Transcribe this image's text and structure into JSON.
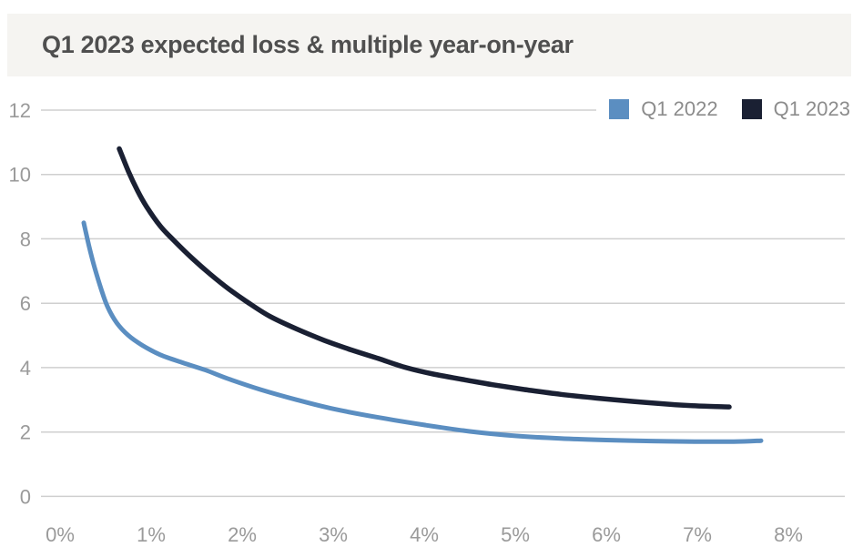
{
  "header": {
    "title": "Q1 2023 expected loss & multiple year-on-year"
  },
  "legend": {
    "position": "top-right",
    "items": [
      {
        "label": "Q1 2022",
        "color": "#5b8ec1"
      },
      {
        "label": "Q1 2023",
        "color": "#1a2033"
      }
    ]
  },
  "colors": {
    "banner_background": "#f5f4f1",
    "title_text": "#4f4f4f",
    "gridline": "#cfcfcf",
    "tick_text": "#9a9a9a",
    "legend_text": "#8c8c8c"
  },
  "chart_data": {
    "type": "line",
    "title": "Q1 2023 expected loss & multiple year-on-year",
    "xlabel": "",
    "ylabel": "",
    "xlim": [
      0,
      8
    ],
    "ylim": [
      0,
      12
    ],
    "x_tick_values": [
      0,
      1,
      2,
      3,
      4,
      5,
      6,
      7,
      8
    ],
    "x_tick_labels": [
      "0%",
      "1%",
      "2%",
      "3%",
      "4%",
      "5%",
      "6%",
      "7%",
      "8%"
    ],
    "y_ticks": [
      0,
      2,
      4,
      6,
      8,
      10,
      12
    ],
    "grid": "horizontal",
    "legend_position": "top-right",
    "x_unit": "percent_expected_loss",
    "y_unit": "multiple",
    "series": [
      {
        "name": "Q1 2022",
        "color": "#5b8ec1",
        "points": [
          [
            0.26,
            8.5
          ],
          [
            0.32,
            7.75
          ],
          [
            0.38,
            7.1
          ],
          [
            0.45,
            6.45
          ],
          [
            0.52,
            5.9
          ],
          [
            0.62,
            5.4
          ],
          [
            0.75,
            5.0
          ],
          [
            0.9,
            4.7
          ],
          [
            1.1,
            4.4
          ],
          [
            1.35,
            4.15
          ],
          [
            1.6,
            3.92
          ],
          [
            1.85,
            3.65
          ],
          [
            2.2,
            3.32
          ],
          [
            2.6,
            3.0
          ],
          [
            3.0,
            2.72
          ],
          [
            3.5,
            2.45
          ],
          [
            4.0,
            2.22
          ],
          [
            4.5,
            2.02
          ],
          [
            5.0,
            1.88
          ],
          [
            5.5,
            1.8
          ],
          [
            6.0,
            1.75
          ],
          [
            6.5,
            1.72
          ],
          [
            7.0,
            1.7
          ],
          [
            7.4,
            1.7
          ],
          [
            7.7,
            1.73
          ]
        ]
      },
      {
        "name": "Q1 2023",
        "color": "#1a2033",
        "points": [
          [
            0.65,
            10.8
          ],
          [
            0.75,
            10.1
          ],
          [
            0.85,
            9.5
          ],
          [
            0.95,
            9.0
          ],
          [
            1.1,
            8.4
          ],
          [
            1.25,
            7.95
          ],
          [
            1.45,
            7.4
          ],
          [
            1.65,
            6.9
          ],
          [
            1.85,
            6.45
          ],
          [
            2.05,
            6.05
          ],
          [
            2.3,
            5.6
          ],
          [
            2.6,
            5.2
          ],
          [
            2.9,
            4.85
          ],
          [
            3.2,
            4.55
          ],
          [
            3.5,
            4.28
          ],
          [
            3.8,
            4.0
          ],
          [
            4.1,
            3.8
          ],
          [
            4.45,
            3.62
          ],
          [
            4.75,
            3.47
          ],
          [
            5.1,
            3.32
          ],
          [
            5.5,
            3.17
          ],
          [
            5.9,
            3.05
          ],
          [
            6.3,
            2.95
          ],
          [
            6.7,
            2.86
          ],
          [
            7.0,
            2.81
          ],
          [
            7.35,
            2.78
          ]
        ]
      }
    ]
  }
}
